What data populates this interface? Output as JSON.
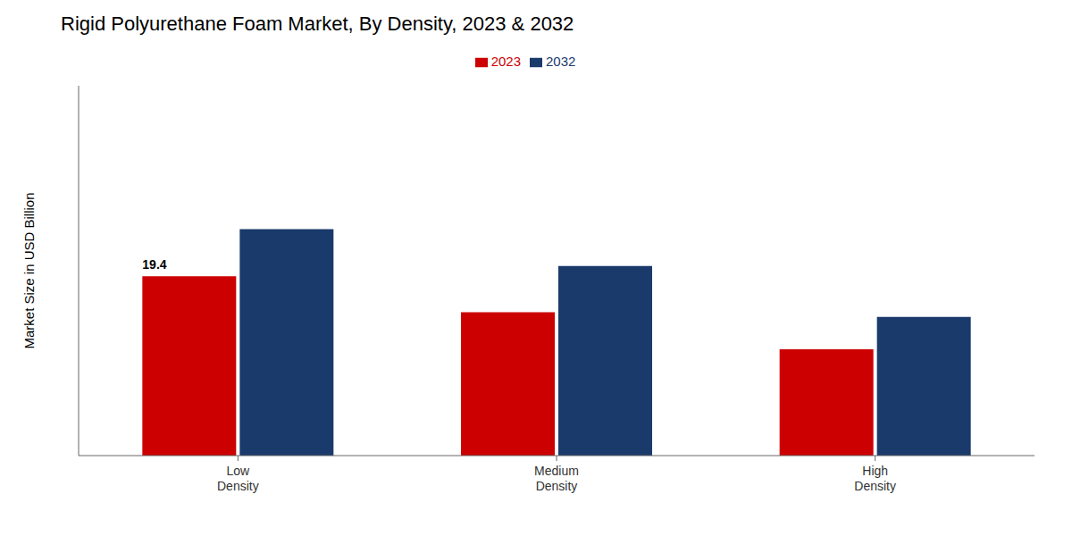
{
  "chart_data": {
    "type": "bar",
    "title": "Rigid Polyurethane Foam Market, By Density, 2023 & 2032",
    "ylabel": "Market Size in USD Billion",
    "categories": [
      "Low\nDensity",
      "Medium\nDensity",
      "High\nDensity"
    ],
    "series": [
      {
        "name": "2023",
        "color": "#cc0000",
        "values": [
          19.4,
          15.5,
          11.5
        ]
      },
      {
        "name": "2032",
        "color": "#1a3a6b",
        "values": [
          24.5,
          20.5,
          15.0
        ]
      }
    ],
    "ylim": [
      0,
      40
    ],
    "tick_labels": "x",
    "legend": "top",
    "annotations": [
      {
        "text": "19.4",
        "category": "Low\nDensity",
        "series": "2023"
      }
    ]
  }
}
